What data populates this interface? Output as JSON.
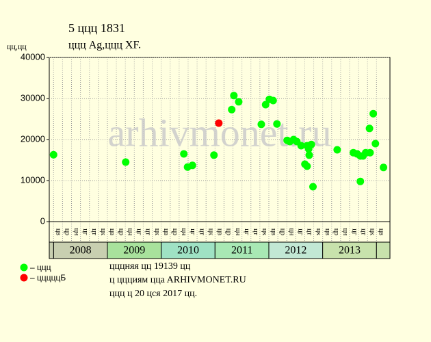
{
  "chart_data": {
    "type": "scatter",
    "title": "5 ццц 1831",
    "subtitle": "ццц Ag,ццц XF.",
    "y_label": "цц,цц",
    "watermark": "arhivmonet.ru",
    "ylim": [
      0,
      40000
    ],
    "yticks": [
      0,
      10000,
      20000,
      30000,
      40000
    ],
    "xlim": [
      2007.92,
      2014.25
    ],
    "grid": true,
    "periods": [
      "цв",
      "цр",
      "цн",
      "цг",
      "цт",
      "цк",
      "цв",
      "цр",
      "цн",
      "цг",
      "цт",
      "цк",
      "цв",
      "цр",
      "цн",
      "цг",
      "цт",
      "цк",
      "цв",
      "цр",
      "цн",
      "цг",
      "цт",
      "цк",
      "цв",
      "цр",
      "цн",
      "цг",
      "цт",
      "цк",
      "цв",
      "цр",
      "цн",
      "цг",
      "цт",
      "цк",
      "цв"
    ],
    "years": [
      {
        "year": 2008,
        "color": "#c8cfb0"
      },
      {
        "year": 2009,
        "color": "#a8e29c"
      },
      {
        "year": 2010,
        "color": "#9fe2c4"
      },
      {
        "year": 2011,
        "color": "#a8e8b4"
      },
      {
        "year": 2012,
        "color": "#c2e8d4"
      },
      {
        "year": 2013,
        "color": "#c8e2ac"
      }
    ],
    "series": [
      {
        "name": "– ццц",
        "color": "#00ff00",
        "x": [
          2008.0,
          2009.34,
          2010.42,
          2010.49,
          2010.58,
          2010.98,
          2011.31,
          2011.35,
          2011.44,
          2011.86,
          2011.94,
          2012.01,
          2012.08,
          2012.15,
          2012.34,
          2012.39,
          2012.46,
          2012.52,
          2012.6,
          2012.67,
          2012.71,
          2012.71,
          2012.74,
          2012.75,
          2012.79,
          2012.82,
          2013.27,
          2013.57,
          2013.64,
          2013.7,
          2013.7,
          2013.75,
          2013.8,
          2013.87,
          2013.88,
          2013.94,
          2013.98,
          2014.13
        ],
        "values": [
          16300,
          14500,
          16500,
          13300,
          13700,
          16200,
          27300,
          30700,
          29200,
          23700,
          28500,
          29800,
          29500,
          23800,
          19800,
          19500,
          20000,
          19500,
          18500,
          14000,
          13500,
          18500,
          17700,
          16200,
          18800,
          8500,
          17500,
          16800,
          16500,
          16000,
          9800,
          16000,
          16800,
          22700,
          16800,
          26300,
          19000,
          13200
        ]
      },
      {
        "name": "– цццццБ",
        "color": "#ff0000",
        "x": [
          2011.07
        ],
        "values": [
          24000
        ]
      }
    ],
    "notes": [
      "цццняя цц 19139 цц",
      "ц ццциям ццa ARHIVMONET.RU",
      "ццц ц 20 цся 2017 цц."
    ]
  }
}
